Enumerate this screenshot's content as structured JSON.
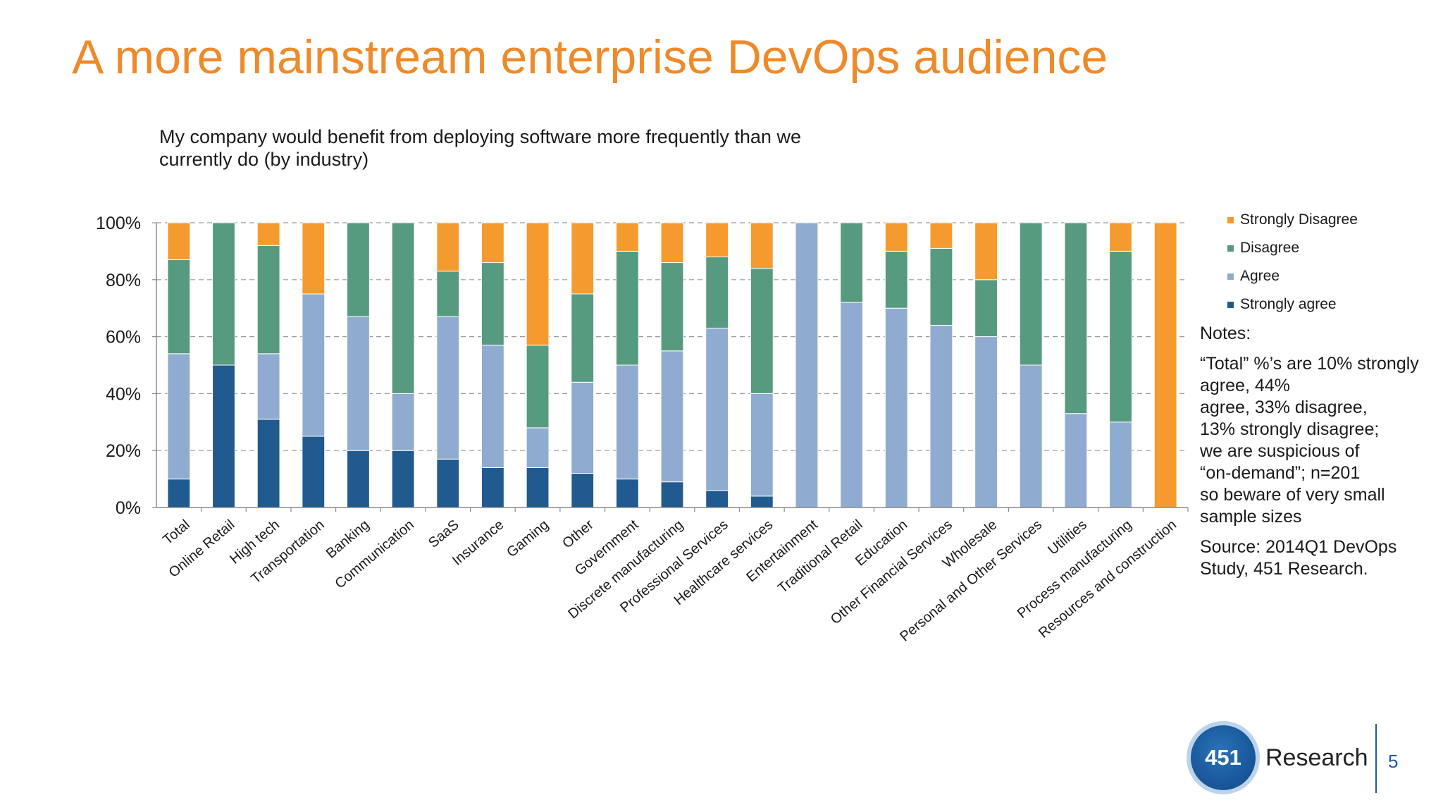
{
  "slide": {
    "title": "A more mainstream enterprise DevOps audience",
    "page_number": "5"
  },
  "chart_data": {
    "type": "bar",
    "stacked": true,
    "percent": true,
    "title": "My company would benefit from deploying software more frequently than we currently do (by industry)",
    "ylim": [
      0,
      100
    ],
    "yticks": [
      "0%",
      "20%",
      "40%",
      "60%",
      "80%",
      "100%"
    ],
    "grid": "horizontal-dashed",
    "legend_position": "right",
    "categories": [
      "Total",
      "Online Retail",
      "High tech",
      "Transportation",
      "Banking",
      "Communication",
      "SaaS",
      "Insurance",
      "Gaming",
      "Other",
      "Government",
      "Discrete manufacturing",
      "Professional Services",
      "Healthcare services",
      "Entertainment",
      "Traditional Retail",
      "Education",
      "Other Financial Services",
      "Wholesale",
      "Personal and Other Services",
      "Utilities",
      "Process manufacturing",
      "Resources and construction"
    ],
    "series": [
      {
        "name": "Strongly agree",
        "color": "#215a8e",
        "values": [
          10,
          50,
          31,
          25,
          20,
          20,
          17,
          14,
          14,
          12,
          10,
          9,
          6,
          4,
          0,
          0,
          0,
          0,
          0,
          0,
          0,
          0,
          0
        ]
      },
      {
        "name": "Agree",
        "color": "#8fabcf",
        "values": [
          44,
          0,
          23,
          50,
          47,
          20,
          50,
          43,
          14,
          32,
          40,
          46,
          57,
          36,
          100,
          72,
          70,
          64,
          60,
          50,
          33,
          30,
          0
        ]
      },
      {
        "name": "Disagree",
        "color": "#569a7f",
        "values": [
          33,
          50,
          38,
          0,
          33,
          60,
          16,
          29,
          29,
          31,
          40,
          31,
          25,
          44,
          0,
          28,
          20,
          27,
          20,
          50,
          67,
          60,
          0
        ]
      },
      {
        "name": "Strongly Disagree",
        "color": "#f59a2f",
        "values": [
          13,
          0,
          8,
          25,
          0,
          0,
          17,
          14,
          43,
          25,
          10,
          14,
          12,
          16,
          0,
          0,
          10,
          9,
          20,
          0,
          0,
          10,
          100
        ]
      }
    ]
  },
  "legend": {
    "items": [
      {
        "label": "Strongly Disagree",
        "color": "#f59a2f"
      },
      {
        "label": "Disagree",
        "color": "#569a7f"
      },
      {
        "label": "Agree",
        "color": "#8fabcf"
      },
      {
        "label": "Strongly agree",
        "color": "#215a8e"
      }
    ]
  },
  "notes": {
    "heading": "Notes:",
    "lines": [
      "“Total” %’s are 10% strongly agree, 44%",
      "agree, 33% disagree,",
      "13% strongly disagree;",
      "we are suspicious of",
      "“on-demand”; n=201",
      "so beware of very small",
      "sample sizes"
    ],
    "source": "Source: 2014Q1 DevOps Study, 451 Research."
  },
  "logo": {
    "badge_text": "451",
    "word": "Research"
  }
}
